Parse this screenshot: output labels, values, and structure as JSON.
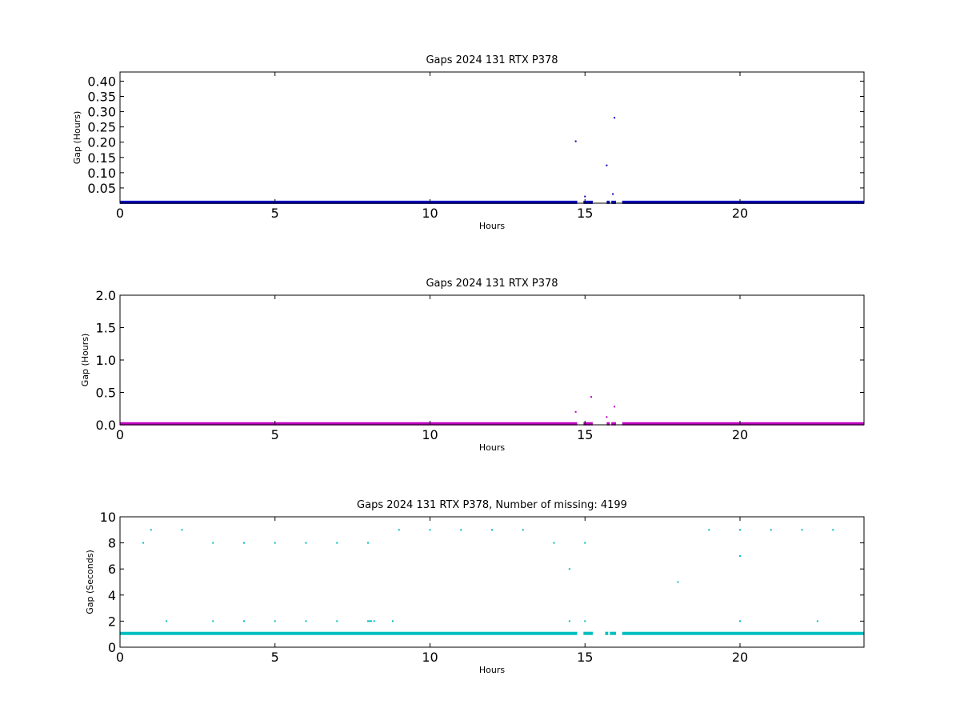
{
  "chart_data": [
    {
      "type": "scatter",
      "title": "Gaps 2024 131 RTX  P378",
      "xlabel": "Hours",
      "ylabel": "Gap (Hours)",
      "xlim": [
        0,
        24
      ],
      "ylim": [
        0,
        0.43
      ],
      "xticks": [
        0,
        5,
        10,
        15,
        20
      ],
      "yticks": [
        0.05,
        0.1,
        0.15,
        0.2,
        0.25,
        0.3,
        0.35,
        0.4
      ],
      "ytick_labels": [
        "0.05",
        "0.10",
        "0.15",
        "0.20",
        "0.25",
        "0.30",
        "0.35",
        "0.40"
      ],
      "color": "#0000bf",
      "baseline": {
        "value": 0.0003,
        "segments": [
          [
            0,
            14.75
          ],
          [
            14.95,
            15.25
          ],
          [
            15.7,
            15.8
          ],
          [
            15.85,
            16.0
          ],
          [
            16.2,
            24
          ]
        ]
      },
      "points": [
        {
          "x": 8.1,
          "y": 0.003
        },
        {
          "x": 14.7,
          "y": 0.203
        },
        {
          "x": 15.0,
          "y": 0.022
        },
        {
          "x": 15.7,
          "y": 0.124
        },
        {
          "x": 15.9,
          "y": 0.03
        },
        {
          "x": 15.95,
          "y": 0.28
        },
        {
          "x": 22.5,
          "y": 0.004
        }
      ]
    },
    {
      "type": "scatter",
      "title": "Gaps 2024 131 RTX  P378",
      "xlabel": "Hours",
      "ylabel": "Gap (Hours)",
      "xlim": [
        0,
        24
      ],
      "ylim": [
        0,
        2.0
      ],
      "xticks": [
        0,
        5,
        10,
        15,
        20
      ],
      "yticks": [
        0.0,
        0.5,
        1.0,
        1.5,
        2.0
      ],
      "ytick_labels": [
        "0.0",
        "0.5",
        "1.0",
        "1.5",
        "2.0"
      ],
      "color": "#bf00bf",
      "baseline": {
        "value": 0.003,
        "segments": [
          [
            0,
            14.75
          ],
          [
            14.95,
            15.25
          ],
          [
            15.7,
            15.8
          ],
          [
            15.85,
            16.0
          ],
          [
            16.2,
            24
          ]
        ]
      },
      "points": [
        {
          "x": 14.7,
          "y": 0.2
        },
        {
          "x": 15.2,
          "y": 0.43
        },
        {
          "x": 15.7,
          "y": 0.12
        },
        {
          "x": 15.95,
          "y": 0.28
        }
      ]
    },
    {
      "type": "scatter",
      "title": "Gaps 2024 131 RTX  P378, Number of missing: 4199",
      "xlabel": "Hours",
      "ylabel": "Gap (Seconds)",
      "xlim": [
        0,
        24
      ],
      "ylim": [
        0,
        10
      ],
      "xticks": [
        0,
        5,
        10,
        15,
        20
      ],
      "yticks": [
        0,
        2,
        4,
        6,
        8,
        10
      ],
      "ytick_labels": [
        "0",
        "2",
        "4",
        "6",
        "8",
        "10"
      ],
      "color": "#00bfbf",
      "baseline": {
        "value": 1,
        "segments": [
          [
            0,
            14.75
          ],
          [
            14.95,
            15.25
          ],
          [
            15.65,
            15.75
          ],
          [
            15.8,
            16.0
          ],
          [
            16.2,
            24
          ]
        ]
      },
      "points": [
        {
          "x": 0.75,
          "y": 8
        },
        {
          "x": 1.0,
          "y": 9
        },
        {
          "x": 1.5,
          "y": 2
        },
        {
          "x": 2.0,
          "y": 9
        },
        {
          "x": 3.0,
          "y": 8
        },
        {
          "x": 3.0,
          "y": 2
        },
        {
          "x": 4.0,
          "y": 8
        },
        {
          "x": 4.0,
          "y": 2
        },
        {
          "x": 5.0,
          "y": 8
        },
        {
          "x": 5.0,
          "y": 2
        },
        {
          "x": 6.0,
          "y": 8
        },
        {
          "x": 6.0,
          "y": 2
        },
        {
          "x": 7.0,
          "y": 8
        },
        {
          "x": 7.0,
          "y": 2
        },
        {
          "x": 8.0,
          "y": 8
        },
        {
          "x": 8.0,
          "y": 2
        },
        {
          "x": 8.05,
          "y": 2
        },
        {
          "x": 8.1,
          "y": 2
        },
        {
          "x": 8.2,
          "y": 2
        },
        {
          "x": 8.8,
          "y": 2
        },
        {
          "x": 9.0,
          "y": 9
        },
        {
          "x": 10.0,
          "y": 9
        },
        {
          "x": 11.0,
          "y": 9
        },
        {
          "x": 12.0,
          "y": 9
        },
        {
          "x": 13.0,
          "y": 9
        },
        {
          "x": 14.0,
          "y": 8
        },
        {
          "x": 14.5,
          "y": 6
        },
        {
          "x": 14.5,
          "y": 2
        },
        {
          "x": 15.0,
          "y": 8
        },
        {
          "x": 15.0,
          "y": 2
        },
        {
          "x": 18.0,
          "y": 5
        },
        {
          "x": 19.0,
          "y": 9
        },
        {
          "x": 20.0,
          "y": 9
        },
        {
          "x": 20.0,
          "y": 7
        },
        {
          "x": 20.0,
          "y": 2
        },
        {
          "x": 21.0,
          "y": 9
        },
        {
          "x": 22.0,
          "y": 9
        },
        {
          "x": 22.5,
          "y": 2
        },
        {
          "x": 23.0,
          "y": 9
        }
      ]
    }
  ]
}
